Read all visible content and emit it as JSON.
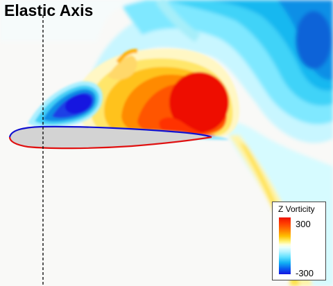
{
  "title": "Elastic Axis",
  "legend": {
    "label": "Z Vorticity",
    "max_label": "300",
    "min_label": "-300"
  },
  "colors": {
    "positive_vortex": "#ee1100",
    "negative_vortex": "#1414e0",
    "airfoil_fill": "#d3d3d3",
    "airfoil_upper_edge": "#1010d0",
    "airfoil_lower_edge": "#e01010",
    "elastic_axis_line": "#000000"
  }
}
